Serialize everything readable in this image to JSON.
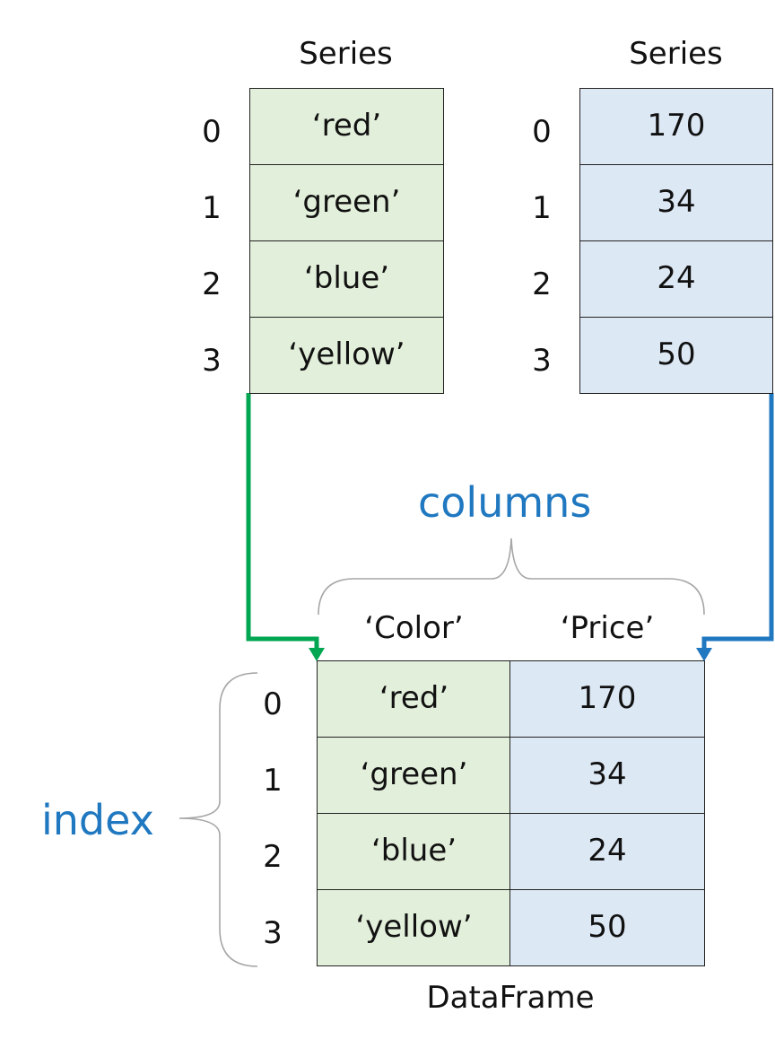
{
  "series_left": {
    "title": "Series",
    "index": [
      "0",
      "1",
      "2",
      "3"
    ],
    "values": [
      "‘red’",
      "‘green’",
      "‘blue’",
      "‘yellow’"
    ]
  },
  "series_right": {
    "title": "Series",
    "index": [
      "0",
      "1",
      "2",
      "3"
    ],
    "values": [
      "170",
      "34",
      "24",
      "50"
    ]
  },
  "labels": {
    "columns": "columns",
    "index": "index"
  },
  "dataframe": {
    "caption": "DataFrame",
    "headers": [
      "‘Color’",
      "‘Price’"
    ],
    "index": [
      "0",
      "1",
      "2",
      "3"
    ],
    "rows": [
      [
        "‘red’",
        "170"
      ],
      [
        "‘green’",
        "34"
      ],
      [
        "‘blue’",
        "24"
      ],
      [
        "‘yellow’",
        "50"
      ]
    ]
  },
  "colors": {
    "green_fill": "#e2efda",
    "blue_fill": "#dde8f5",
    "green_arrow": "#00a651",
    "blue_arrow": "#1f78c0",
    "brace": "#a6a6a6"
  }
}
